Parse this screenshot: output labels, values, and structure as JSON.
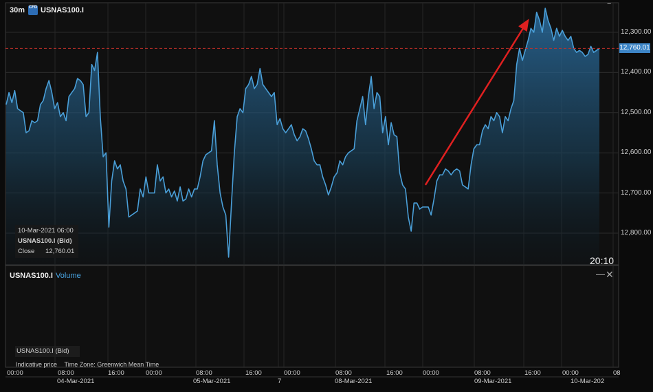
{
  "header": {
    "timeframe": "30m",
    "badge": "CFD",
    "symbol": "USNAS100.I",
    "minimize_icon": "minus-icon"
  },
  "price_panel": {
    "current_price": "12,760.01",
    "y_ticks": [
      "12,800.00",
      "12,700.00",
      "12,600.00",
      "12,500.00",
      "12,400.00",
      "12,300.00"
    ],
    "clock": "20:10",
    "info": {
      "datetime": "10-Mar-2021 06:00",
      "instrument": "USNAS100.I (Bid)",
      "close_label": "Close",
      "close_value": "12,760.01"
    },
    "line_color": "#4a9fd8",
    "arrow_color": "#e02020",
    "ref_line_color": "#c0302a"
  },
  "volume_panel": {
    "symbol": "USNAS100.I",
    "indicator": "Volume",
    "instrument": "USNAS100.I (Bid)",
    "minimize_icon": "minus-icon",
    "close_icon": "close-icon"
  },
  "footer": {
    "indicative": "Indicative price",
    "timezone": "Time Zone: Greenwich Mean Time"
  },
  "x_axis": {
    "times": [
      "00:00",
      "08:00",
      "16:00",
      "00:00",
      "08:00",
      "16:00",
      "00:00",
      "08:00",
      "16:00",
      "00:00",
      "08:00",
      "16:00",
      "00:00",
      "08"
    ],
    "dates": [
      "04-Mar-2021",
      "05-Mar-2021",
      "7",
      "08-Mar-2021",
      "09-Mar-2021",
      "10-Mar-202"
    ]
  },
  "chart_data": {
    "type": "area",
    "ylim": [
      12230,
      12860
    ],
    "y_ticks": [
      12300,
      12400,
      12500,
      12600,
      12700,
      12800
    ],
    "reference_line": 12760.01,
    "grid": true,
    "series": [
      {
        "values": [
          12620,
          12650,
          12625,
          12655,
          12610,
          12605,
          12600,
          12550,
          12555,
          12580,
          12575,
          12580,
          12620,
          12630,
          12660,
          12680,
          12650,
          12610,
          12625,
          12590,
          12600,
          12580,
          12640,
          12650,
          12660,
          12685,
          12680,
          12670,
          12590,
          12600,
          12720,
          12705,
          12750,
          12590,
          12490,
          12500,
          12315,
          12430,
          12480,
          12460,
          12470,
          12430,
          12410,
          12340,
          12345,
          12350,
          12355,
          12410,
          12390,
          12440,
          12400,
          12400,
          12400,
          12470,
          12430,
          12440,
          12400,
          12410,
          12390,
          12405,
          12380,
          12415,
          12380,
          12385,
          12410,
          12390,
          12410,
          12410,
          12440,
          12480,
          12495,
          12500,
          12505,
          12580,
          12470,
          12400,
          12365,
          12345,
          12240,
          12375,
          12500,
          12590,
          12610,
          12600,
          12660,
          12670,
          12690,
          12660,
          12670,
          12710,
          12670,
          12660,
          12650,
          12640,
          12650,
          12570,
          12585,
          12560,
          12550,
          12560,
          12570,
          12545,
          12530,
          12540,
          12560,
          12555,
          12535,
          12510,
          12480,
          12470,
          12470,
          12440,
          12420,
          12395,
          12415,
          12440,
          12450,
          12480,
          12470,
          12490,
          12500,
          12505,
          12510,
          12580,
          12610,
          12640,
          12570,
          12640,
          12690,
          12610,
          12650,
          12640,
          12550,
          12590,
          12520,
          12575,
          12545,
          12540,
          12450,
          12420,
          12410,
          12340,
          12305,
          12375,
          12375,
          12360,
          12365,
          12365,
          12365,
          12345,
          12385,
          12430,
          12445,
          12445,
          12460,
          12455,
          12445,
          12455,
          12460,
          12455,
          12420,
          12415,
          12410,
          12470,
          12510,
          12520,
          12520,
          12555,
          12570,
          12560,
          12590,
          12580,
          12600,
          12590,
          12550,
          12590,
          12580,
          12610,
          12630,
          12720,
          12760,
          12730,
          12755,
          12780,
          12810,
          12800,
          12850,
          12830,
          12800,
          12860,
          12830,
          12810,
          12780,
          12810,
          12790,
          12805,
          12790,
          12780,
          12790,
          12760,
          12750,
          12755,
          12750,
          12740,
          12745,
          12765,
          12750,
          12755,
          12760
        ]
      }
    ],
    "annotation": {
      "type": "arrow",
      "from": {
        "index": 147,
        "value": 12420
      },
      "to": {
        "index": 183,
        "value": 12830
      }
    }
  }
}
